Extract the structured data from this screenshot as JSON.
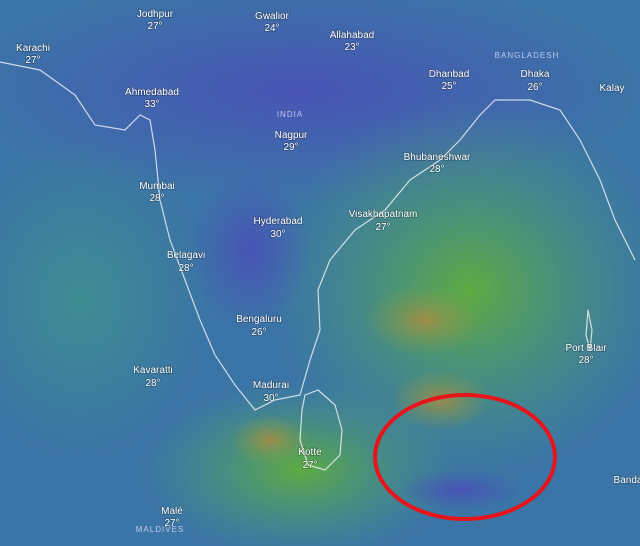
{
  "map": {
    "labels": [
      {
        "name": "Jodhpur",
        "temp": "27°"
      },
      {
        "name": "Gwalior",
        "temp": "24°"
      },
      {
        "name": "Allahabad",
        "temp": "23°"
      },
      {
        "name": "Karachi",
        "temp": "27°"
      },
      {
        "name": "Ahmedabad",
        "temp": "33°"
      },
      {
        "name": "Dhanbad",
        "temp": "25°"
      },
      {
        "name": "Dhaka",
        "temp": "26°"
      },
      {
        "name": "Kalay"
      },
      {
        "name": "Nagpur",
        "temp": "29°"
      },
      {
        "name": "Bhubaneshwar",
        "temp": "28°"
      },
      {
        "name": "Mumbai",
        "temp": "28°"
      },
      {
        "name": "Visakhapatnam",
        "temp": "27°"
      },
      {
        "name": "Hyderabad",
        "temp": "30°"
      },
      {
        "name": "Belagavi",
        "temp": "28°"
      },
      {
        "name": "Bengaluru",
        "temp": "26°"
      },
      {
        "name": "Kavaratti",
        "temp": "28°"
      },
      {
        "name": "Port Blair",
        "temp": "28°"
      },
      {
        "name": "Madurai",
        "temp": "30°"
      },
      {
        "name": "Kotte",
        "temp": "27°"
      },
      {
        "name": "Banda"
      },
      {
        "name": "Malé",
        "temp": "27°"
      }
    ],
    "regions": [
      "INDIA",
      "BANGLADESH",
      "MALDIVES"
    ]
  }
}
